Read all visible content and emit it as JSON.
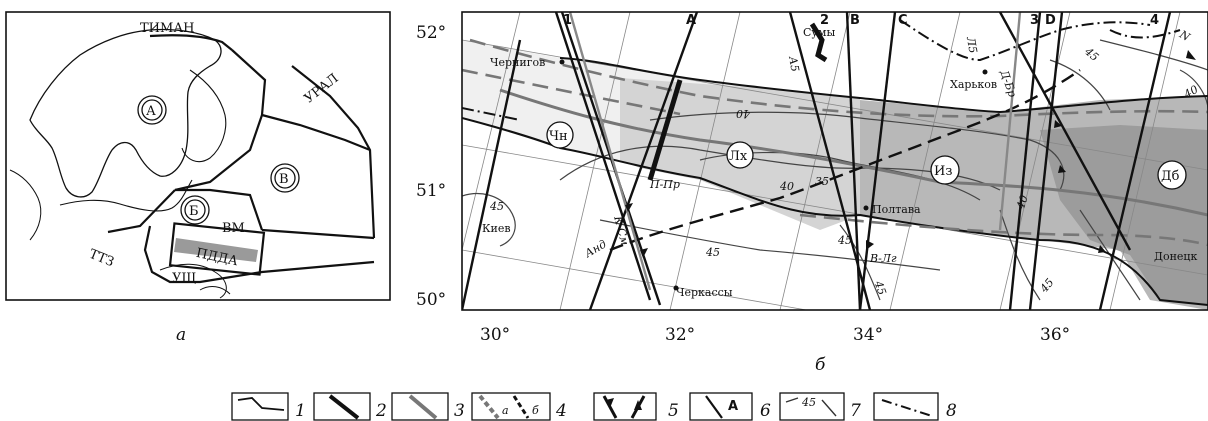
{
  "panel_a": {
    "caption": "а",
    "labels": {
      "timan": "ТИМАН",
      "ural": "УРАЛ",
      "ttz": "ТТЗ",
      "vm": "ВМ",
      "ushch": "УЩ",
      "pdda": "ПДДА"
    },
    "blocks": {
      "a": "А",
      "b": "Б",
      "v": "В"
    }
  },
  "panel_b": {
    "caption": "б",
    "lat_ticks": [
      "52°",
      "51°",
      "50°"
    ],
    "lon_ticks": [
      "30°",
      "32°",
      "34°",
      "36°"
    ],
    "profile_letters": [
      "A",
      "B",
      "C",
      "D"
    ],
    "profile_numbers": [
      "1",
      "2",
      "3",
      "4"
    ],
    "north": "N",
    "cities": {
      "chernigov": "Чернигов",
      "sumy": "Сумы",
      "kharkov": "Харьков",
      "poltava": "Полтава",
      "kiev": "Киев",
      "cherkassy": "Черкассы",
      "donetsk": "Донецк"
    },
    "zones": {
      "chn": "Чн",
      "lh": "Лх",
      "iz": "Из",
      "db": "Дб"
    },
    "faults": {
      "p_pr": "П-Пр",
      "and": "Анд",
      "v_l": "В-Лг",
      "d_br": "Д-Бр",
      "k_s": "К-См",
      "a5": "А5",
      "l5": "Л5"
    },
    "contours": [
      "45",
      "40",
      "35",
      "40",
      "45",
      "45",
      "45",
      "40",
      "45",
      "40",
      "45"
    ]
  },
  "legend": {
    "items": [
      {
        "num": "1"
      },
      {
        "num": "2"
      },
      {
        "num": "3"
      },
      {
        "num": "4",
        "sub_a": "а",
        "sub_b": "б"
      },
      {
        "num": "5"
      },
      {
        "num": "6",
        "mark": "A"
      },
      {
        "num": "7",
        "mark": "45"
      },
      {
        "num": "8"
      }
    ]
  }
}
